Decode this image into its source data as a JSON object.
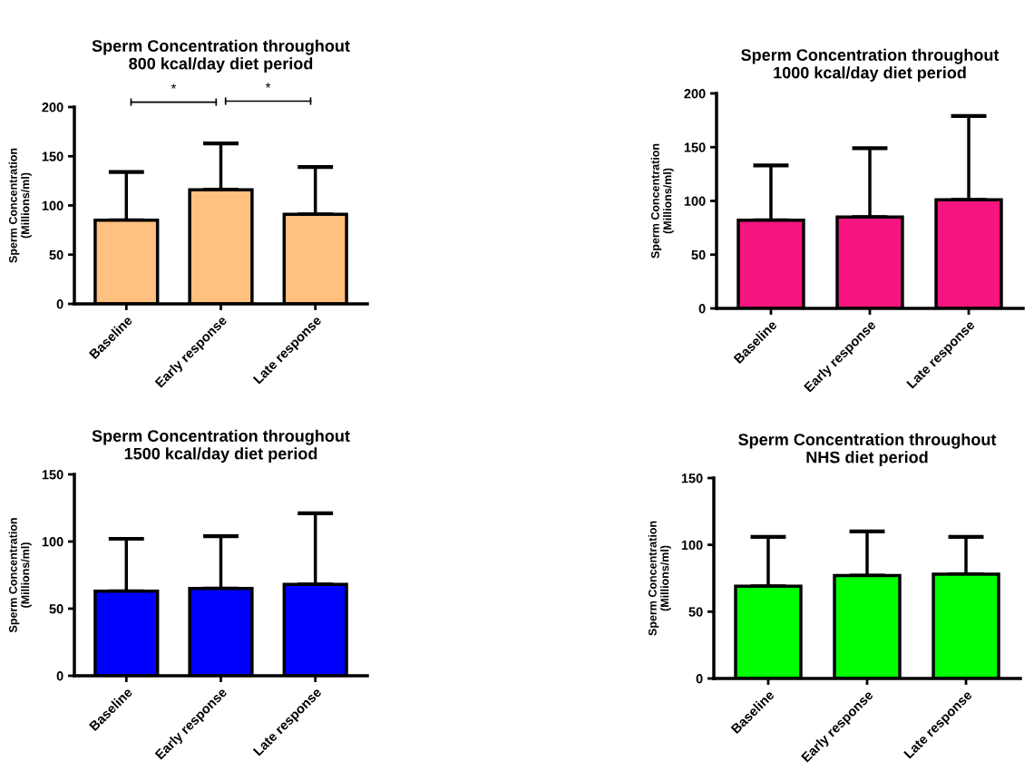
{
  "chart_data": [
    {
      "type": "bar",
      "title": "Sperm Concentration throughout\n800 kcal/day diet period",
      "ylabel": "Sperm Concentration\n(Millions/ml)",
      "categories": [
        "Baseline",
        "Early response",
        "Late response"
      ],
      "values": [
        85,
        116,
        91
      ],
      "errors": [
        [
          85,
          134
        ],
        [
          116,
          163
        ],
        [
          91,
          139
        ]
      ],
      "color": "#ffc080",
      "ylim": [
        0,
        200
      ],
      "yticks": [
        0,
        50,
        100,
        150,
        200
      ],
      "annotations": [
        "*",
        "*"
      ]
    },
    {
      "type": "bar",
      "title": "Sperm Concentration throughout\n1000 kcal/day diet period",
      "ylabel": "Sperm Concentration\n(Millions/ml)",
      "categories": [
        "Baseline",
        "Early response",
        "Late response"
      ],
      "values": [
        82,
        85,
        101
      ],
      "errors": [
        [
          82,
          133
        ],
        [
          85,
          149
        ],
        [
          101,
          179
        ]
      ],
      "color": "#f7157f",
      "ylim": [
        0,
        200
      ],
      "yticks": [
        0,
        50,
        100,
        150,
        200
      ]
    },
    {
      "type": "bar",
      "title": "Sperm Concentration throughout\n1500 kcal/day diet period",
      "ylabel": "Sperm Concentration\n(Millions/ml)",
      "categories": [
        "Baseline",
        "Early response",
        "Late response"
      ],
      "values": [
        63,
        65,
        68
      ],
      "errors": [
        [
          63,
          102
        ],
        [
          65,
          104
        ],
        [
          68,
          121
        ]
      ],
      "color": "#0000ff",
      "ylim": [
        0,
        150
      ],
      "yticks": [
        0,
        50,
        100,
        150
      ]
    },
    {
      "type": "bar",
      "title": "Sperm Concentration throughout\nNHS diet period",
      "ylabel": "Sperm Concentration\n(Millions/ml)",
      "categories": [
        "Baseline",
        "Early response",
        "Late response"
      ],
      "values": [
        69,
        77,
        78
      ],
      "errors": [
        [
          69,
          106
        ],
        [
          77,
          110
        ],
        [
          78,
          106
        ]
      ],
      "color": "#00ff00",
      "ylim": [
        0,
        150
      ],
      "yticks": [
        0,
        50,
        100,
        150
      ]
    }
  ]
}
